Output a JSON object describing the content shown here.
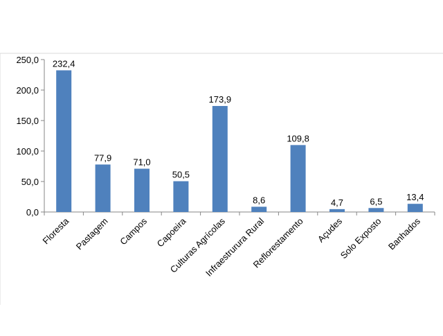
{
  "chart_data": {
    "type": "bar",
    "title": "",
    "xlabel": "",
    "ylabel": "",
    "categories": [
      "Floresta",
      "Pastagem",
      "Campos",
      "Capoeira",
      "Culturas Agrícolas",
      "Infraestrurura Rural",
      "Reflorestamento",
      "Açudes",
      "Solo Exposto",
      "Banhados"
    ],
    "values": [
      232.4,
      77.9,
      71.0,
      50.5,
      173.9,
      8.6,
      109.8,
      4.7,
      6.5,
      13.4
    ],
    "value_labels": [
      "232,4",
      "77,9",
      "71,0",
      "50,5",
      "173,9",
      "8,6",
      "109,8",
      "4,7",
      "6,5",
      "13,4"
    ],
    "yticks": [
      0,
      50,
      100,
      150,
      200,
      250
    ],
    "ytick_labels": [
      "0,0",
      "50,0",
      "100,0",
      "150,0",
      "200,0",
      "250,0"
    ],
    "ylim": [
      0,
      250
    ],
    "grid": false,
    "legend": "none",
    "bar_color": "#4f81bd"
  }
}
